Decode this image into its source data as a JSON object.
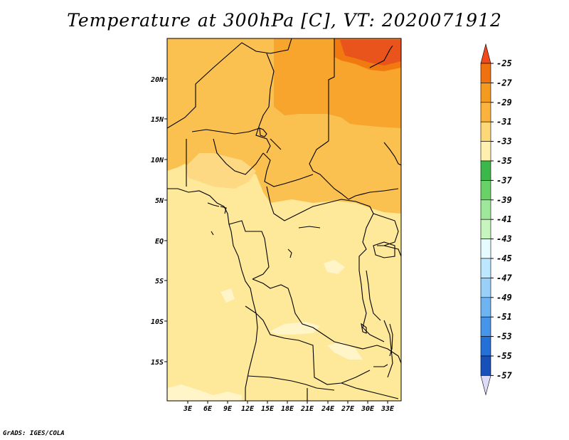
{
  "title": "Temperature at 300hPa [C], VT: 2020071912",
  "credit": "GrADS: IGES/COLA",
  "map": {
    "lat_labels": [
      "20N",
      "15N",
      "10N",
      "5N",
      "EQ",
      "5S",
      "10S",
      "15S"
    ],
    "lon_labels": [
      "3E",
      "6E",
      "9E",
      "12E",
      "15E",
      "18E",
      "21E",
      "24E",
      "27E",
      "30E",
      "33E"
    ],
    "fill_colors": {
      "light_yellow": "#fee89a",
      "yellow": "#fdd983",
      "pale": "#fff5c8",
      "light_orange": "#fac150",
      "orange": "#f7a52c",
      "dark_orange": "#f17a10",
      "red_orange": "#e8541b",
      "border": "#000000"
    }
  },
  "colorbar": {
    "labels": [
      "-25",
      "-27",
      "-29",
      "-31",
      "-33",
      "-35",
      "-37",
      "-39",
      "-41",
      "-43",
      "-45",
      "-47",
      "-49",
      "-51",
      "-53",
      "-55",
      "-57"
    ],
    "colors": [
      "#f04a1a",
      "#ef7110",
      "#f49a1e",
      "#fbb33e",
      "#fdd878",
      "#fff0b0",
      "#3cb84b",
      "#68d268",
      "#9fe79a",
      "#c7f5c0",
      "#e6fbff",
      "#bde6ff",
      "#9ad0f8",
      "#6db4f1",
      "#4695ea",
      "#2470d6",
      "#1650b8",
      "#0e2e8f",
      "#0a1c6a",
      "#dcdcf8"
    ]
  }
}
